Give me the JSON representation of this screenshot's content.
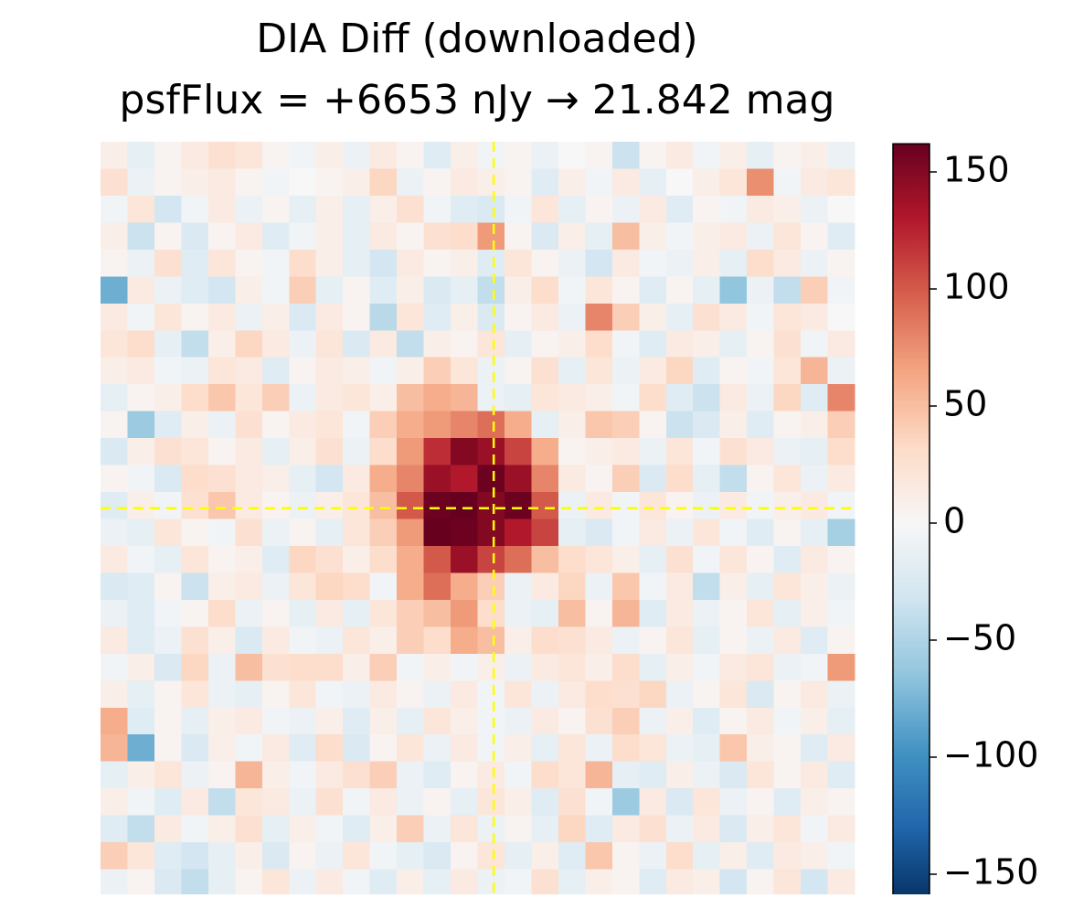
{
  "chart_data": {
    "type": "heatmap",
    "title": "DIA Diff (downloaded)",
    "subtitle": "psfFlux = +6653 nJy  →  21.842 mag",
    "colormap": [
      "#053061",
      "#2166ac",
      "#4393c3",
      "#92c5de",
      "#d1e5f0",
      "#f7f7f7",
      "#fddbc7",
      "#f4a582",
      "#d6604d",
      "#b2182b",
      "#67001f"
    ],
    "clim": [
      -162,
      162
    ],
    "cticks": [
      {
        "value": -150,
        "label": "−150"
      },
      {
        "value": -100,
        "label": "−100"
      },
      {
        "value": -50,
        "label": "−50"
      },
      0,
      50,
      100,
      150
    ],
    "marker_x": 14.1,
    "marker_y": 13.1,
    "marker_color": "#ffff00",
    "values": [
      [
        10,
        -15,
        5,
        15,
        25,
        20,
        5,
        -5,
        10,
        -10,
        15,
        5,
        -20,
        10,
        -5,
        5,
        -10,
        0,
        5,
        -35,
        5,
        15,
        -5,
        10,
        -15,
        5,
        10,
        -10
      ],
      [
        25,
        -10,
        5,
        10,
        15,
        5,
        -5,
        0,
        5,
        10,
        35,
        -10,
        5,
        15,
        10,
        5,
        -20,
        10,
        -5,
        15,
        -15,
        0,
        10,
        20,
        75,
        -5,
        15,
        20
      ],
      [
        -5,
        20,
        -30,
        -5,
        15,
        -10,
        5,
        -15,
        10,
        -15,
        10,
        25,
        -5,
        -20,
        -25,
        -5,
        20,
        -15,
        5,
        -10,
        15,
        -20,
        5,
        -5,
        15,
        10,
        -10,
        0
      ],
      [
        10,
        -35,
        5,
        -25,
        5,
        15,
        -20,
        -5,
        10,
        -15,
        15,
        5,
        25,
        30,
        70,
        5,
        -25,
        10,
        -15,
        50,
        10,
        -5,
        10,
        15,
        -10,
        20,
        5,
        -20
      ],
      [
        5,
        -10,
        25,
        -20,
        20,
        5,
        -5,
        30,
        10,
        -15,
        -30,
        15,
        5,
        10,
        -20,
        20,
        5,
        -10,
        -30,
        15,
        -5,
        -10,
        10,
        -15,
        30,
        15,
        -10,
        5
      ],
      [
        -80,
        15,
        -10,
        -20,
        -30,
        10,
        -5,
        40,
        -15,
        5,
        -20,
        10,
        -25,
        -15,
        -40,
        10,
        30,
        -5,
        20,
        5,
        -20,
        5,
        -15,
        -65,
        -10,
        -40,
        40,
        -5
      ],
      [
        15,
        -5,
        20,
        5,
        15,
        -10,
        10,
        -25,
        15,
        5,
        -45,
        20,
        -20,
        10,
        -25,
        5,
        15,
        -10,
        80,
        40,
        10,
        -15,
        25,
        15,
        -5,
        20,
        15,
        0
      ],
      [
        20,
        30,
        -15,
        -40,
        10,
        35,
        15,
        -10,
        20,
        -25,
        15,
        -40,
        10,
        5,
        20,
        -15,
        5,
        10,
        30,
        -5,
        -20,
        15,
        10,
        -15,
        5,
        25,
        -5,
        15
      ],
      [
        10,
        15,
        -5,
        -10,
        20,
        15,
        -20,
        5,
        15,
        10,
        -5,
        10,
        40,
        20,
        -10,
        5,
        25,
        -15,
        20,
        -10,
        15,
        35,
        -20,
        5,
        -5,
        20,
        55,
        -10
      ],
      [
        -15,
        5,
        10,
        30,
        45,
        20,
        40,
        -10,
        15,
        20,
        10,
        50,
        60,
        55,
        -10,
        -15,
        20,
        15,
        10,
        -5,
        30,
        -20,
        -35,
        15,
        -10,
        35,
        -20,
        80
      ],
      [
        5,
        -60,
        -20,
        10,
        -10,
        25,
        5,
        15,
        20,
        -5,
        40,
        60,
        70,
        80,
        90,
        60,
        -15,
        10,
        45,
        40,
        5,
        -35,
        -25,
        10,
        -20,
        5,
        10,
        40
      ],
      [
        -25,
        10,
        25,
        20,
        5,
        15,
        -15,
        10,
        25,
        -10,
        30,
        70,
        120,
        150,
        140,
        110,
        60,
        5,
        10,
        15,
        -10,
        20,
        -5,
        25,
        15,
        -10,
        -15,
        30
      ],
      [
        5,
        -5,
        -25,
        30,
        25,
        15,
        10,
        -15,
        -30,
        15,
        60,
        80,
        140,
        130,
        160,
        140,
        80,
        15,
        5,
        40,
        -25,
        30,
        -15,
        -40,
        5,
        20,
        -10,
        15
      ],
      [
        -20,
        10,
        -5,
        25,
        45,
        15,
        5,
        -10,
        10,
        20,
        50,
        100,
        160,
        165,
        150,
        160,
        100,
        -10,
        15,
        -5,
        20,
        5,
        -10,
        15,
        -5,
        10,
        15,
        -5
      ],
      [
        -10,
        -15,
        20,
        5,
        -5,
        25,
        -10,
        5,
        -15,
        20,
        40,
        70,
        165,
        160,
        150,
        130,
        110,
        -15,
        -25,
        -5,
        15,
        -10,
        20,
        -5,
        -20,
        5,
        -15,
        -55
      ],
      [
        15,
        -5,
        -15,
        20,
        5,
        10,
        -20,
        35,
        25,
        10,
        30,
        60,
        100,
        140,
        110,
        90,
        50,
        30,
        20,
        10,
        -15,
        25,
        -5,
        20,
        5,
        -20,
        15,
        5
      ],
      [
        -25,
        -20,
        5,
        -35,
        10,
        15,
        -10,
        20,
        35,
        30,
        -5,
        60,
        90,
        60,
        40,
        -10,
        15,
        35,
        -10,
        45,
        -5,
        15,
        -40,
        10,
        -15,
        20,
        10,
        -10
      ],
      [
        -10,
        -20,
        -5,
        5,
        30,
        -10,
        5,
        -15,
        15,
        -15,
        20,
        40,
        50,
        70,
        30,
        -10,
        -15,
        50,
        5,
        55,
        -20,
        15,
        -10,
        5,
        20,
        -15,
        10,
        -5
      ],
      [
        15,
        -20,
        -10,
        25,
        10,
        -25,
        15,
        -5,
        -10,
        20,
        10,
        40,
        30,
        60,
        50,
        10,
        30,
        25,
        15,
        -10,
        5,
        20,
        -15,
        5,
        -10,
        15,
        -20,
        5
      ],
      [
        -5,
        10,
        -25,
        35,
        -10,
        50,
        25,
        30,
        30,
        10,
        40,
        -5,
        10,
        -5,
        10,
        -10,
        15,
        20,
        10,
        30,
        -15,
        10,
        -5,
        15,
        20,
        -10,
        -5,
        70
      ],
      [
        10,
        -15,
        5,
        20,
        -10,
        -15,
        5,
        20,
        -5,
        -10,
        15,
        5,
        -10,
        15,
        -5,
        20,
        -10,
        15,
        30,
        25,
        35,
        -10,
        5,
        20,
        -25,
        5,
        15,
        -10
      ],
      [
        60,
        -20,
        5,
        -15,
        10,
        15,
        -5,
        -10,
        10,
        -20,
        10,
        -15,
        20,
        10,
        -5,
        -10,
        15,
        5,
        25,
        40,
        -10,
        10,
        -20,
        5,
        15,
        -5,
        10,
        -15
      ],
      [
        55,
        -80,
        5,
        -25,
        10,
        -5,
        15,
        -20,
        30,
        -25,
        5,
        20,
        -10,
        15,
        -5,
        10,
        -15,
        20,
        -10,
        30,
        20,
        -10,
        -15,
        45,
        10,
        5,
        -20,
        15
      ],
      [
        -15,
        10,
        20,
        -10,
        5,
        55,
        10,
        -5,
        15,
        25,
        40,
        -10,
        -20,
        5,
        15,
        -5,
        30,
        20,
        55,
        -15,
        -20,
        10,
        -10,
        -25,
        20,
        5,
        15,
        -20
      ],
      [
        10,
        -5,
        -20,
        15,
        -40,
        20,
        15,
        -10,
        25,
        -5,
        15,
        -10,
        5,
        -15,
        20,
        10,
        -20,
        25,
        -5,
        -60,
        15,
        -25,
        20,
        -10,
        5,
        -20,
        10,
        5
      ],
      [
        -20,
        -40,
        15,
        -5,
        10,
        25,
        -15,
        10,
        -5,
        -20,
        10,
        40,
        -10,
        20,
        -10,
        5,
        -15,
        35,
        -20,
        15,
        25,
        -10,
        15,
        -25,
        10,
        20,
        -5,
        15
      ],
      [
        40,
        20,
        -20,
        -30,
        -15,
        10,
        -25,
        5,
        -10,
        20,
        -5,
        -15,
        -25,
        5,
        20,
        -15,
        10,
        -20,
        45,
        5,
        -10,
        30,
        -15,
        10,
        -20,
        15,
        10,
        -5
      ],
      [
        -10,
        5,
        -25,
        -40,
        -15,
        5,
        20,
        -10,
        15,
        -5,
        -20,
        10,
        -15,
        15,
        -10,
        -5,
        25,
        -15,
        10,
        5,
        -20,
        15,
        10,
        -30,
        5,
        20,
        -30,
        15
      ]
    ]
  }
}
